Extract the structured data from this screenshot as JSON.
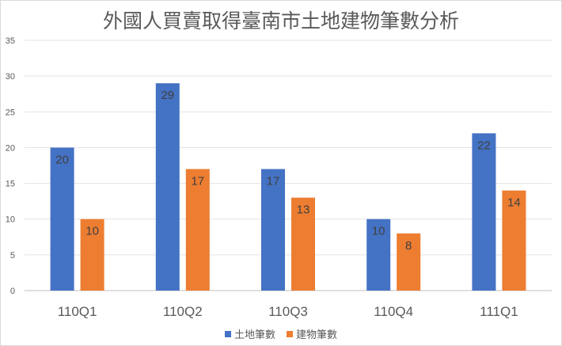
{
  "chart_data": {
    "type": "bar",
    "title": "外國人買賣取得臺南市土地建物筆數分析",
    "xlabel": "",
    "ylabel": "",
    "categories": [
      "110Q1",
      "110Q2",
      "110Q3",
      "110Q4",
      "111Q1"
    ],
    "series": [
      {
        "name": "土地筆數",
        "color": "#4472c4",
        "values": [
          20,
          29,
          17,
          10,
          22
        ]
      },
      {
        "name": "建物筆數",
        "color": "#ed7d31",
        "values": [
          10,
          17,
          13,
          8,
          14
        ]
      }
    ],
    "ylim": [
      0,
      35
    ],
    "yticks": [
      "0",
      "5",
      "10",
      "15",
      "20",
      "25",
      "30",
      "35"
    ],
    "grid": true,
    "legend": "bottom"
  }
}
